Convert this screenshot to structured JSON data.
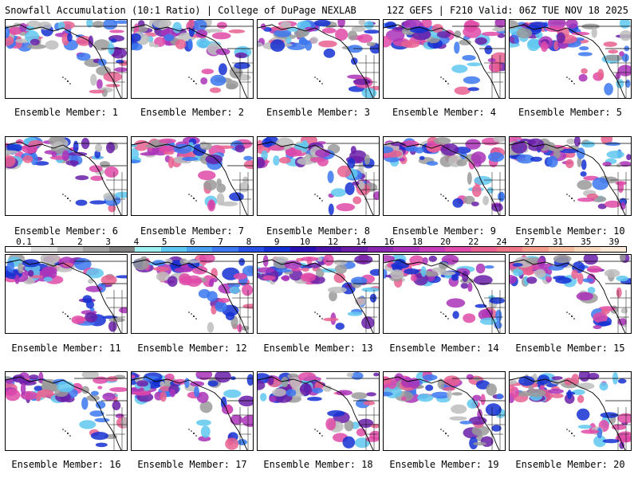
{
  "header": {
    "left_title": "Snowfall Accumulation (10:1 Ratio) | College of DuPage NEXLAB",
    "right_title": "12Z GEFS | F210 Valid: 06Z TUE NOV 18 2025"
  },
  "members": [
    {
      "label": "Ensemble Member: 1"
    },
    {
      "label": "Ensemble Member: 2"
    },
    {
      "label": "Ensemble Member: 3"
    },
    {
      "label": "Ensemble Member: 4"
    },
    {
      "label": "Ensemble Member: 5"
    },
    {
      "label": "Ensemble Member: 6"
    },
    {
      "label": "Ensemble Member: 7"
    },
    {
      "label": "Ensemble Member: 8"
    },
    {
      "label": "Ensemble Member: 9"
    },
    {
      "label": "Ensemble Member: 10"
    },
    {
      "label": "Ensemble Member: 11"
    },
    {
      "label": "Ensemble Member: 12"
    },
    {
      "label": "Ensemble Member: 13"
    },
    {
      "label": "Ensemble Member: 14"
    },
    {
      "label": "Ensemble Member: 15"
    },
    {
      "label": "Ensemble Member: 16"
    },
    {
      "label": "Ensemble Member: 17"
    },
    {
      "label": "Ensemble Member: 18"
    },
    {
      "label": "Ensemble Member: 19"
    },
    {
      "label": "Ensemble Member: 20"
    }
  ],
  "colorbar": {
    "labels": [
      "0.1",
      "1",
      "2",
      "3",
      "4",
      "5",
      "6",
      "7",
      "8",
      "9",
      "10",
      "12",
      "14",
      "16",
      "18",
      "20",
      "22",
      "24",
      "27",
      "31",
      "35",
      "39"
    ],
    "colors": [
      "#ffffff",
      "#dcdcdc",
      "#bebebe",
      "#a0a0a0",
      "#808080",
      "#9ef0f0",
      "#5fc8f0",
      "#4aa0f0",
      "#3c78f0",
      "#2850e6",
      "#1430d2",
      "#2a10b4",
      "#4a14a8",
      "#6a1ea8",
      "#8a28b0",
      "#aa32b8",
      "#c83cb8",
      "#e04aa8",
      "#e86090",
      "#ee7888",
      "#f29a8c",
      "#f6bca0",
      "#f8d8bc",
      "#fbead8"
    ]
  }
}
